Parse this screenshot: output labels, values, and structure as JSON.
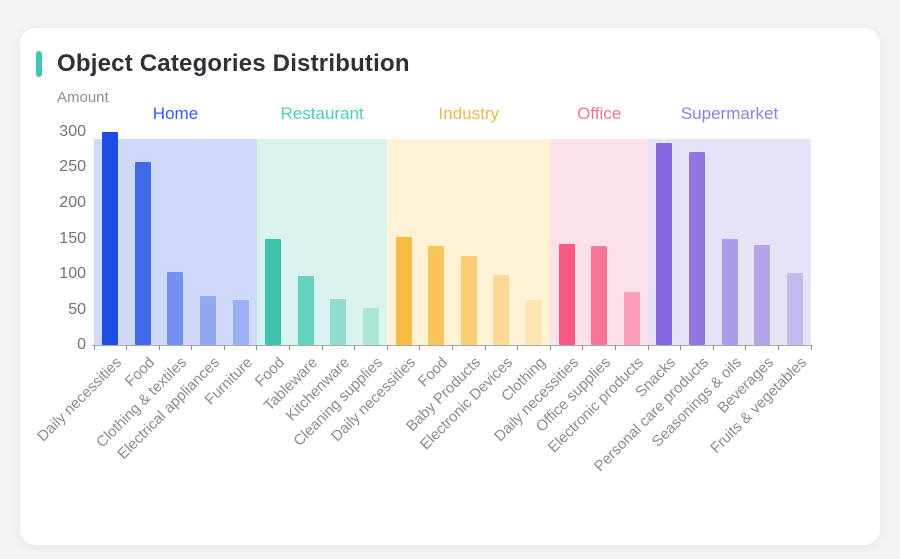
{
  "page": {
    "title": "Object Categories Distribution"
  },
  "colors": {
    "page_background": "#F2F3F5",
    "card_background": "#FFFFFF",
    "title_accent": "#3EC8B9",
    "title_text": "#2F3038",
    "axis_label_text": "#71717B",
    "category_label_text": "#8A8A94",
    "axis_line": "#A9A9B0"
  },
  "chart_data": {
    "type": "bar",
    "title": "Object Categories Distribution",
    "xlabel": "",
    "ylabel": "Amount",
    "ylim": [
      0,
      300
    ],
    "yticks": [
      0,
      50,
      100,
      150,
      200,
      250,
      300
    ],
    "grid": false,
    "legend_position": "group headers above shaded bands",
    "groups": [
      {
        "name": "Home",
        "label_color": "#3A5BEF",
        "band_color": "#CFDAF8",
        "categories": [
          "Daily necessities",
          "Food",
          "Clothing & textiles",
          "Electrical appliances",
          "Furniture"
        ],
        "values": [
          300,
          258,
          103,
          69,
          64
        ],
        "bar_colors": [
          "#1B4FE3",
          "#4069E9",
          "#7392EF",
          "#90A8F2",
          "#9CB1F4"
        ]
      },
      {
        "name": "Restaurant",
        "label_color": "#4ECDB9",
        "band_color": "#D8F3ED",
        "categories": [
          "Food",
          "Tableware",
          "Kitchenware",
          "Cleaning supplies"
        ],
        "values": [
          150,
          97,
          65,
          52
        ],
        "bar_colors": [
          "#3DC4AD",
          "#66D1BE",
          "#90DDD0",
          "#ABE6DB"
        ]
      },
      {
        "name": "Industry",
        "label_color": "#E9B94D",
        "band_color": "#FDF1D6",
        "categories": [
          "Daily necessities",
          "Food",
          "Baby Products",
          "Electronic Devices",
          "Clothing"
        ],
        "values": [
          152,
          139,
          126,
          99,
          64
        ],
        "bar_colors": [
          "#F8BC40",
          "#F9C45B",
          "#FACD74",
          "#FBD994",
          "#FCE4AF"
        ]
      },
      {
        "name": "Office",
        "label_color": "#F97394",
        "band_color": "#FCE0EA",
        "categories": [
          "Daily necessities",
          "Office supplies",
          "Electronic products"
        ],
        "values": [
          142,
          139,
          75
        ],
        "bar_colors": [
          "#F65A82",
          "#F87499",
          "#FA9EB9"
        ]
      },
      {
        "name": "Supermarket",
        "label_color": "#8F7BE9",
        "band_color": "#E8E2F8",
        "categories": [
          "Snacks",
          "Personal care products",
          "Seasonings & oils",
          "Beverages",
          "Fruits & vegetables"
        ],
        "values": [
          285,
          272,
          149,
          141,
          101
        ],
        "bar_colors": [
          "#8367DC",
          "#9076DF",
          "#AC9BE8",
          "#B3A4EA",
          "#C4BAEF"
        ]
      }
    ]
  }
}
